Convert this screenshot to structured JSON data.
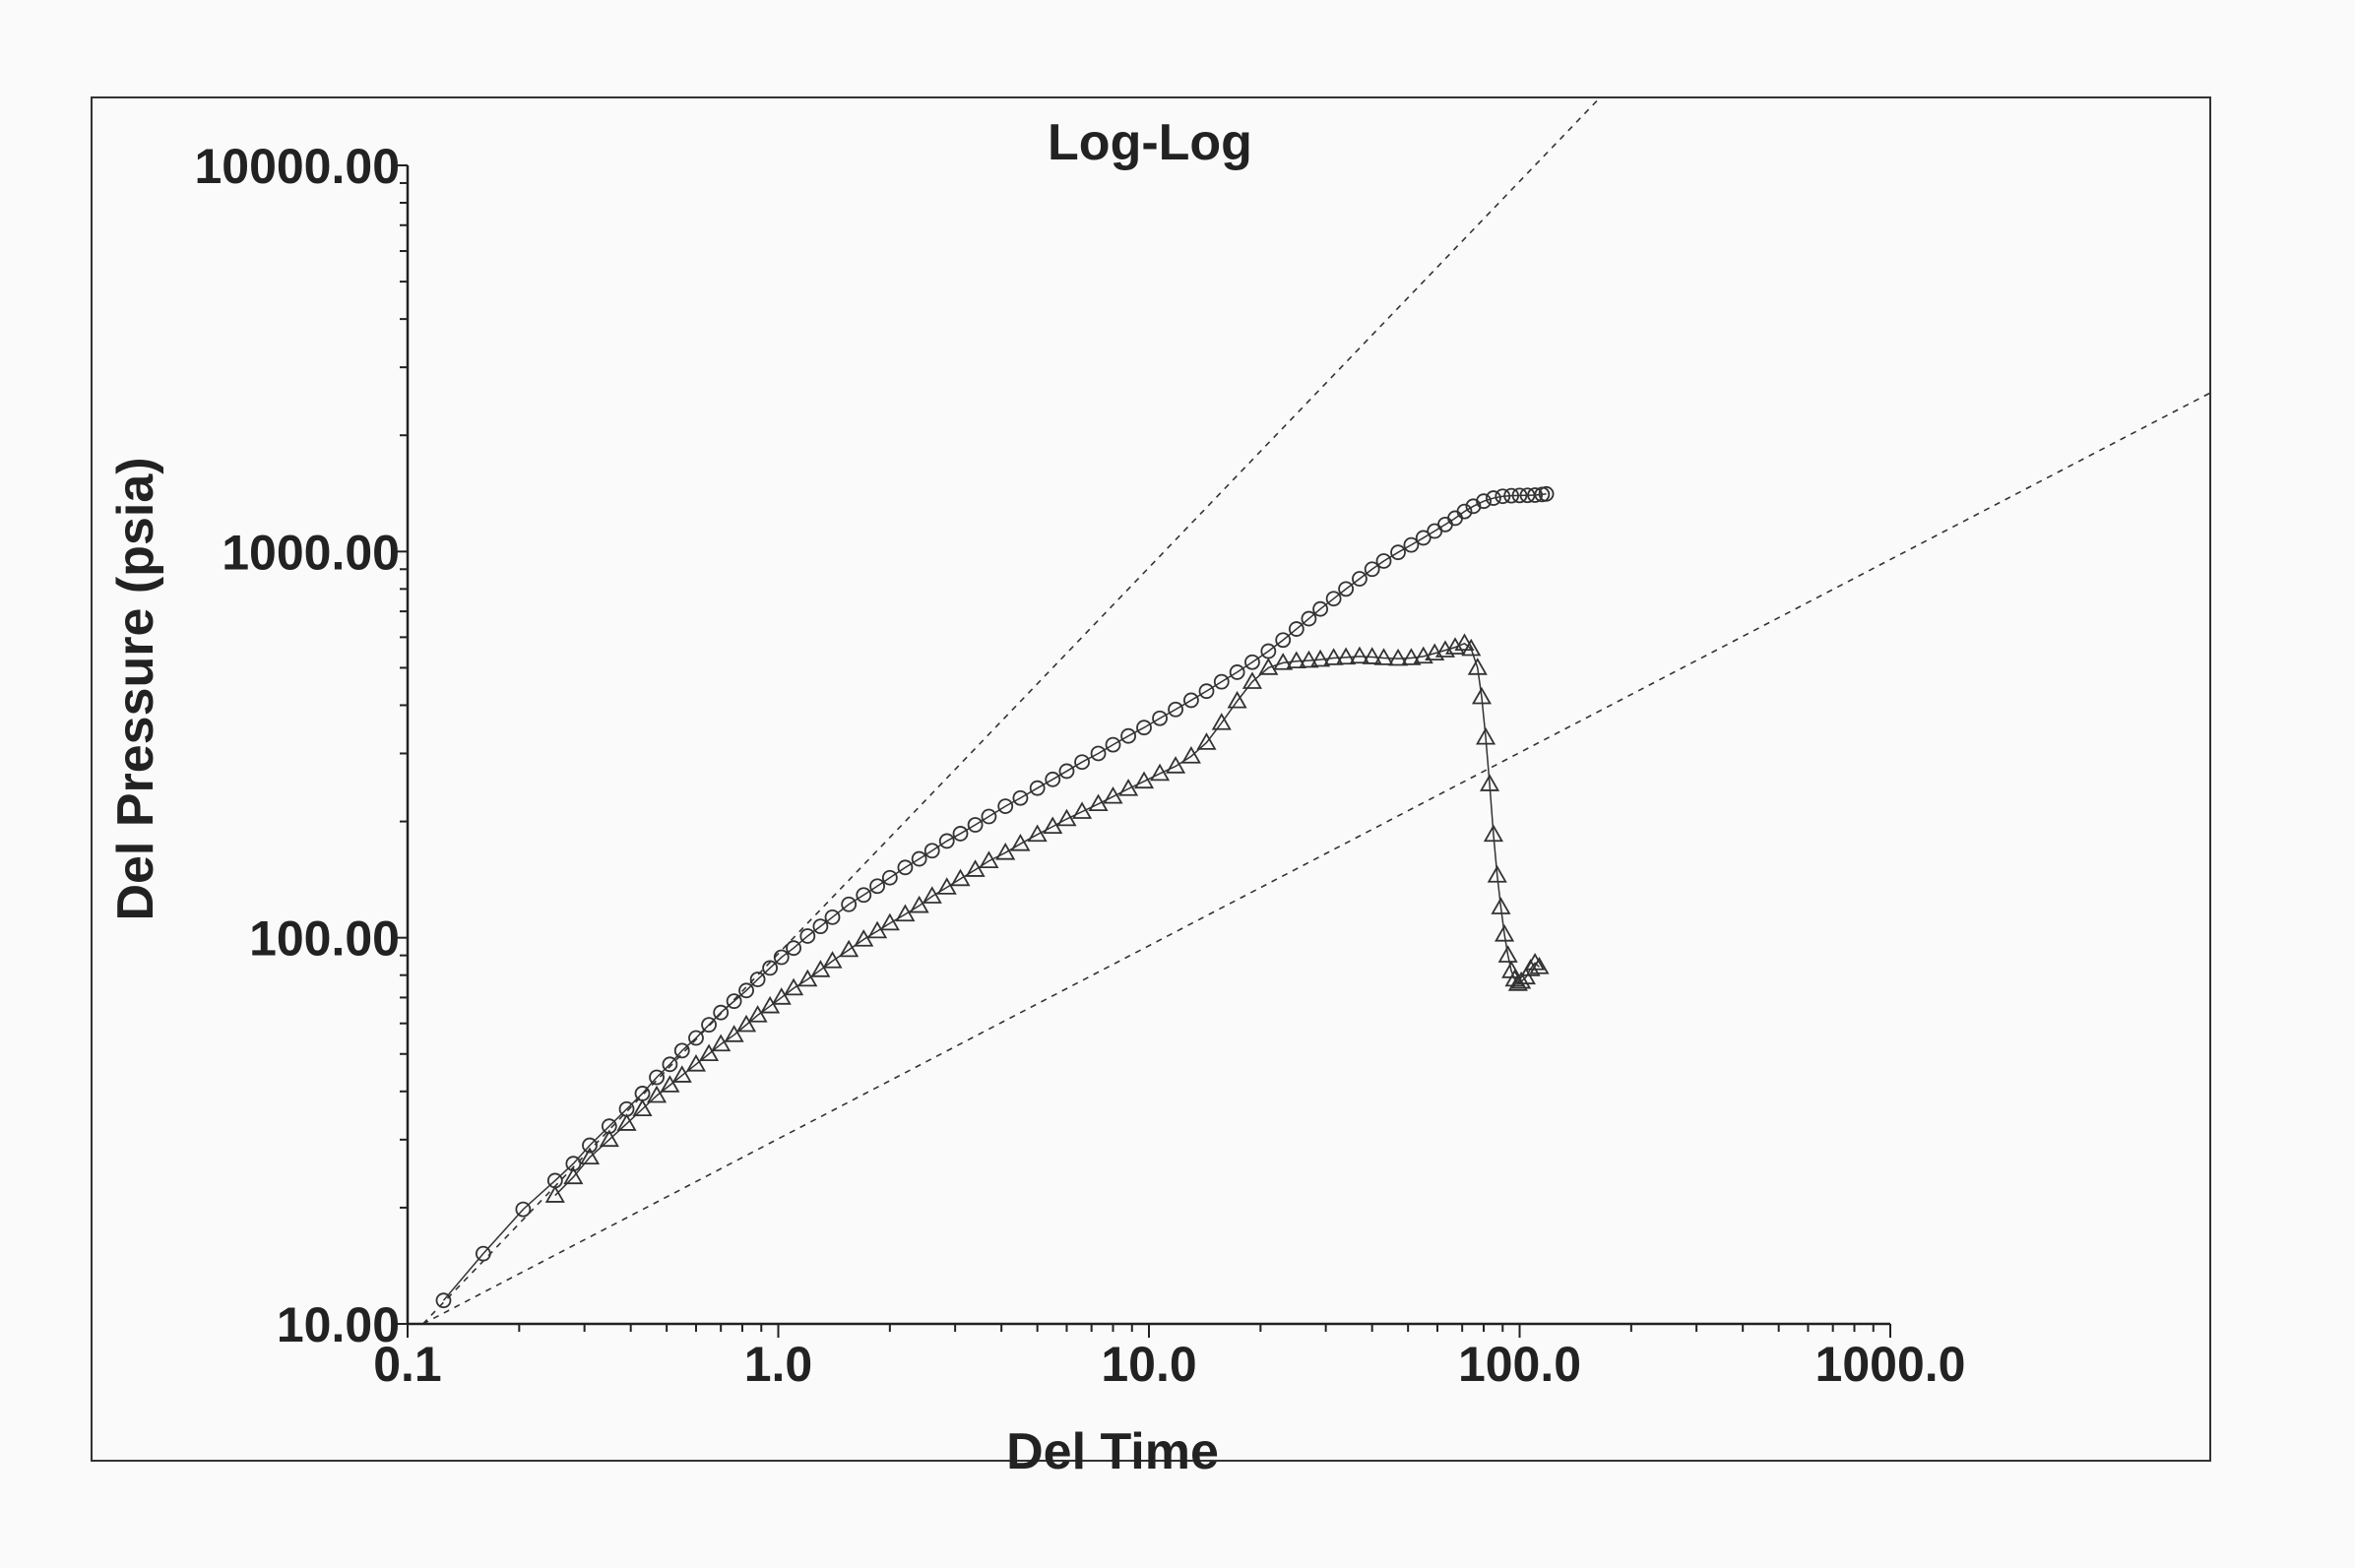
{
  "chart_data": {
    "type": "scatter",
    "title": "Log-Log",
    "xlabel": "Del Time",
    "ylabel": "Del Pressure (psia)",
    "x_scale": "log",
    "y_scale": "log",
    "xlim": [
      0.1,
      1000
    ],
    "ylim": [
      10,
      10000
    ],
    "x_ticks": [
      "0.1",
      "1.0",
      "10.0",
      "100.0",
      "1000.0"
    ],
    "y_ticks": [
      "10.00",
      "100.00",
      "1000.00",
      "10000.00"
    ],
    "grid": false,
    "series": [
      {
        "marker": "circle",
        "x": [
          0.125,
          0.16,
          0.205,
          0.25,
          0.28,
          0.31,
          0.35,
          0.39,
          0.43,
          0.47,
          0.51,
          0.55,
          0.6,
          0.65,
          0.7,
          0.76,
          0.82,
          0.88,
          0.95,
          1.02,
          1.1,
          1.2,
          1.3,
          1.4,
          1.55,
          1.7,
          1.85,
          2.0,
          2.2,
          2.4,
          2.6,
          2.85,
          3.1,
          3.4,
          3.7,
          4.1,
          4.5,
          5.0,
          5.5,
          6.0,
          6.6,
          7.3,
          8.0,
          8.8,
          9.7,
          10.7,
          11.8,
          13.0,
          14.3,
          15.7,
          17.3,
          19.0,
          21.0,
          23.0,
          25.0,
          27.0,
          29.0,
          31.5,
          34.0,
          37.0,
          40.0,
          43.0,
          47.0,
          51.0,
          55.0,
          59.0,
          63.0,
          67.0,
          71.0,
          75.0,
          80.0,
          85.0,
          90.0,
          95.0,
          100.0,
          105.0,
          110.0,
          115.0,
          118.0
        ],
        "y": [
          11.5,
          15.2,
          19.8,
          23.5,
          26.0,
          29.0,
          32.5,
          36.0,
          39.5,
          43.5,
          47.0,
          51.0,
          55.0,
          59.5,
          64.0,
          68.5,
          73.0,
          78.0,
          83.5,
          89.0,
          94.0,
          101.0,
          107.0,
          113.0,
          122.0,
          129.0,
          136.0,
          143.0,
          152.0,
          160.0,
          168.0,
          178.0,
          186.0,
          196.0,
          206.0,
          219.0,
          230.0,
          244.0,
          257.0,
          270.0,
          285.0,
          300.0,
          316.0,
          333.0,
          350.0,
          370.0,
          390.0,
          412.0,
          435.0,
          460.0,
          487.0,
          517.0,
          552.0,
          590.0,
          630.0,
          670.0,
          710.0,
          755.0,
          800.0,
          850.0,
          900.0,
          945.0,
          995.0,
          1040.0,
          1085.0,
          1130.0,
          1175.0,
          1220.0,
          1270.0,
          1310.0,
          1350.0,
          1375.0,
          1390.0,
          1395.0,
          1397.0,
          1398.0,
          1400.0,
          1405.0,
          1410.0
        ]
      },
      {
        "marker": "triangle",
        "x": [
          0.25,
          0.28,
          0.31,
          0.35,
          0.39,
          0.43,
          0.47,
          0.51,
          0.55,
          0.6,
          0.65,
          0.7,
          0.76,
          0.82,
          0.88,
          0.95,
          1.02,
          1.1,
          1.2,
          1.3,
          1.4,
          1.55,
          1.7,
          1.85,
          2.0,
          2.2,
          2.4,
          2.6,
          2.85,
          3.1,
          3.4,
          3.7,
          4.1,
          4.5,
          5.0,
          5.5,
          6.0,
          6.6,
          7.3,
          8.0,
          8.8,
          9.7,
          10.7,
          11.8,
          13.0,
          14.3,
          15.7,
          17.3,
          19.0,
          21.0,
          23.0,
          25.0,
          27.0,
          29.0,
          31.5,
          34.0,
          37.0,
          40.0,
          43.0,
          47.0,
          51.0,
          55.0,
          59.0,
          63.0,
          67.0,
          71.0,
          74.0,
          77.0,
          79.0,
          81.0,
          83.0,
          85.0,
          87.0,
          89.0,
          91.0,
          93.0,
          95.0,
          97.0,
          99.0,
          101.0,
          104.0,
          107.0,
          110.0,
          113.0
        ],
        "y": [
          21.5,
          24.0,
          27.0,
          30.0,
          33.0,
          36.0,
          39.0,
          41.5,
          44.0,
          47.0,
          50.0,
          53.0,
          56.0,
          59.5,
          63.0,
          66.5,
          70.0,
          74.0,
          78.0,
          82.5,
          87.0,
          93.0,
          99.0,
          104.0,
          109.0,
          115.0,
          121.0,
          128.0,
          135.0,
          142.0,
          150.0,
          158.0,
          166.0,
          175.0,
          185.0,
          194.0,
          203.0,
          212.0,
          222.0,
          232.0,
          243.0,
          254.0,
          266.0,
          278.0,
          295.0,
          320.0,
          360.0,
          410.0,
          460.0,
          500.0,
          515.0,
          520.0,
          522.0,
          525.0,
          530.0,
          532.0,
          535.0,
          533.0,
          530.0,
          528.0,
          530.0,
          535.0,
          545.0,
          555.0,
          565.0,
          578.0,
          560.0,
          500.0,
          420.0,
          330.0,
          250.0,
          185.0,
          145.0,
          120.0,
          102.0,
          90.0,
          82.0,
          78.0,
          76.0,
          77.0,
          79.0,
          83.0,
          86.0,
          84.0
        ]
      }
    ],
    "reference_lines": [
      {
        "style": "dashed",
        "slope": 1.0,
        "through": [
          0.11,
          10.0
        ]
      },
      {
        "style": "dashed",
        "slope": 0.5,
        "through": [
          0.11,
          10.0
        ]
      }
    ]
  }
}
